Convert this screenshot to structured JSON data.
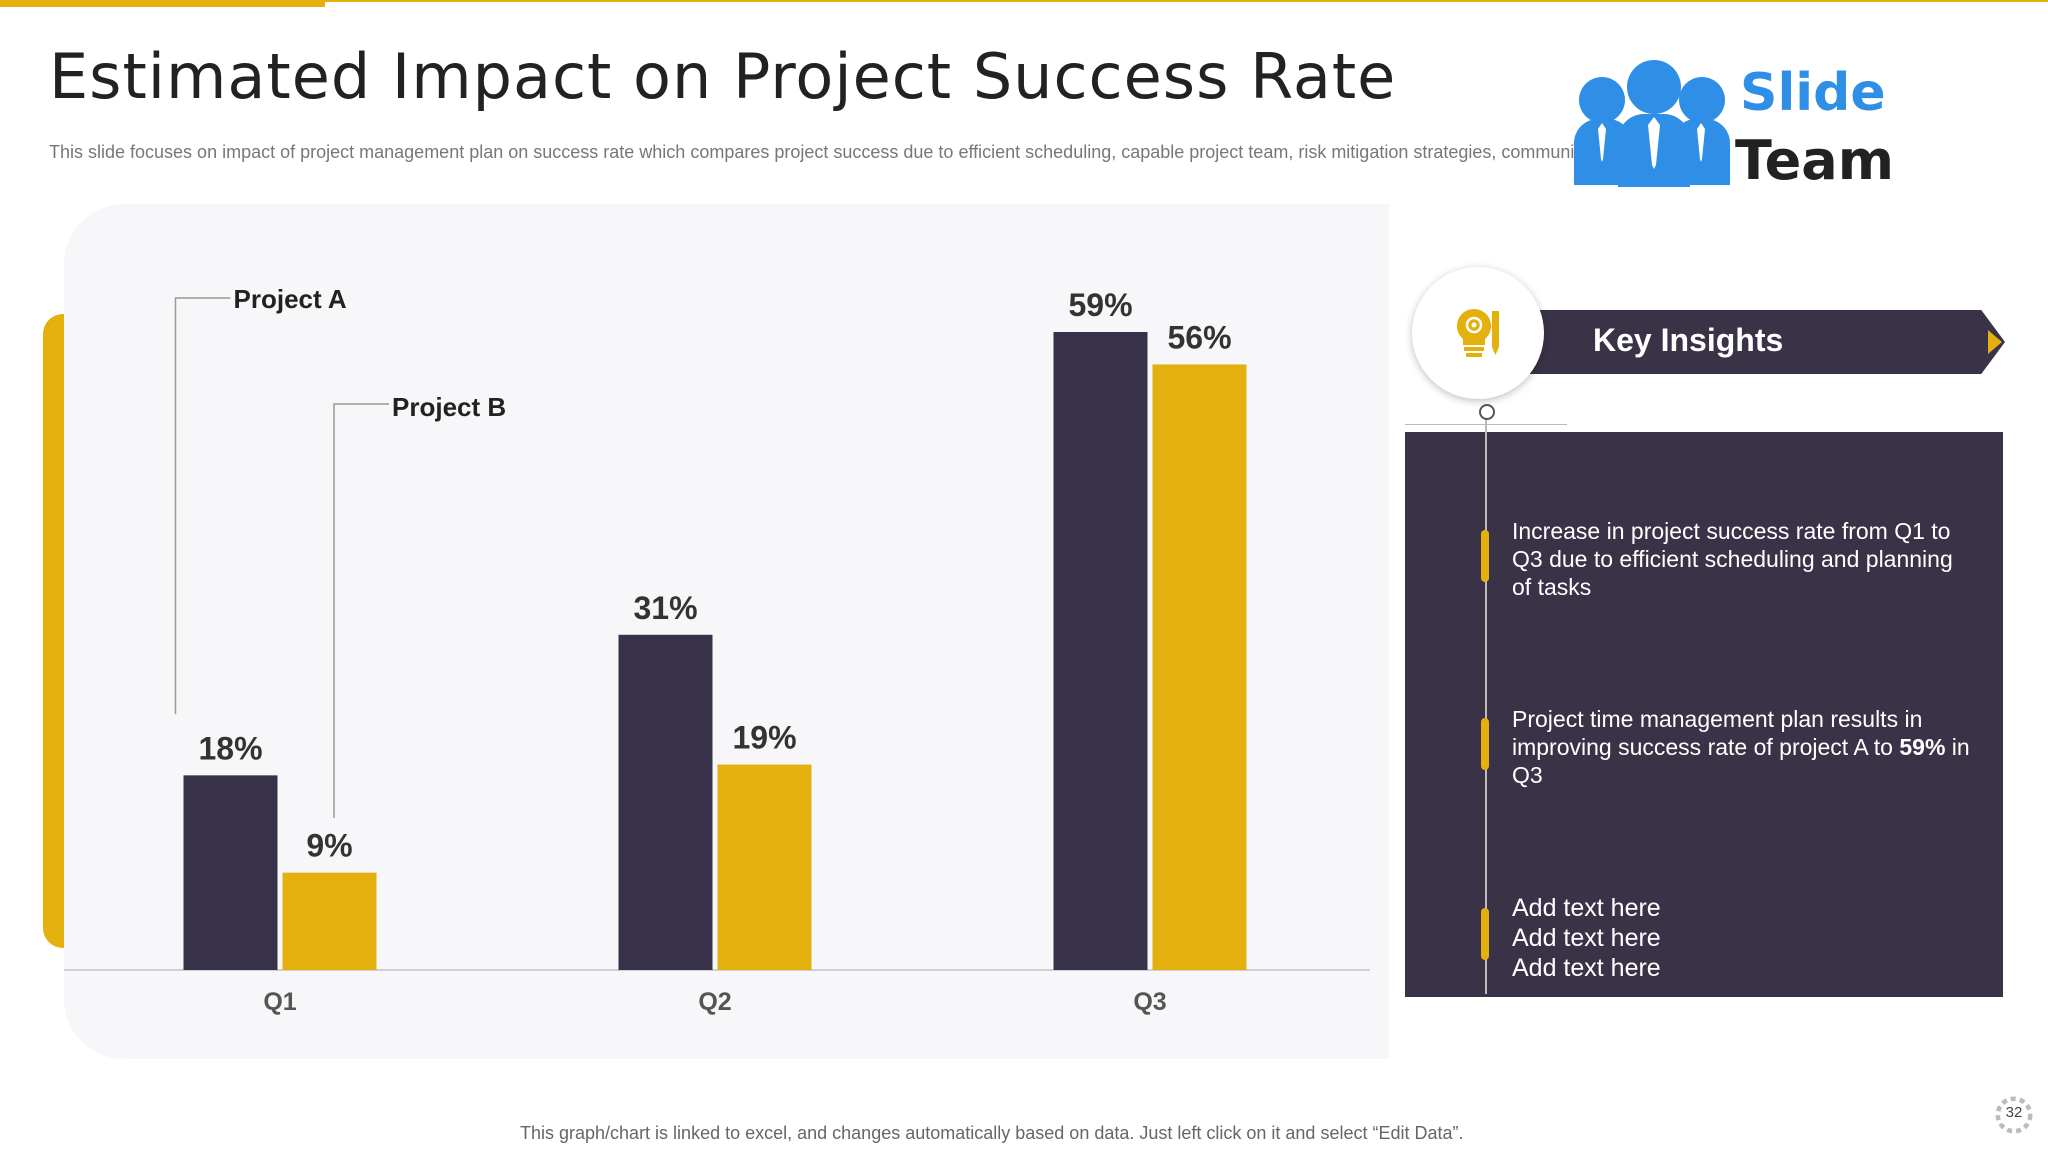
{
  "header": {
    "title": "Estimated Impact on Project Success Rate",
    "subtitle": "This slide focuses on impact of project management plan on success rate which compares project success due to efficient scheduling, capable project team, risk mitigation strategies, communication planning etc."
  },
  "logo": {
    "line1": "Slide",
    "line2": "Team"
  },
  "chart_data": {
    "type": "bar",
    "categories": [
      "Q1",
      "Q2",
      "Q3"
    ],
    "series": [
      {
        "name": "Project A",
        "values": [
          18,
          31,
          59
        ],
        "labels": [
          "18%",
          "31%",
          "59%"
        ],
        "color": "#37314A"
      },
      {
        "name": "Project B",
        "values": [
          9,
          19,
          56
        ],
        "labels": [
          "9%",
          "19%",
          "56%"
        ],
        "color": "#E4B00E"
      }
    ],
    "ylim": [
      0,
      60
    ],
    "grid": false,
    "legend": "callout"
  },
  "insights": {
    "title": "Key Insights",
    "items": [
      {
        "text": "Increase in project success rate from Q1 to Q3 due to efficient scheduling and planning of tasks"
      },
      {
        "pre": "Project time management plan results in improving success rate of project A to ",
        "bold": "59%",
        "post": " in Q3"
      },
      {
        "lines": [
          "Add text here",
          "Add text here",
          "Add text here"
        ]
      }
    ]
  },
  "footer": {
    "note": "This graph/chart is linked to excel, and changes automatically based on data. Just left click on it and select “Edit Data”.",
    "page": "32"
  },
  "colors": {
    "accent": "#E4B00E",
    "dark": "#3A3347",
    "logo_blue": "#2F8FE6"
  }
}
